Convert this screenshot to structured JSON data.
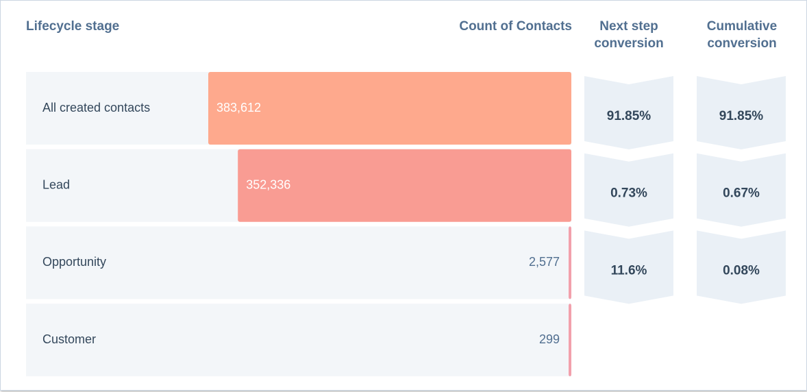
{
  "chart_data": {
    "type": "funnel",
    "headers": {
      "stage": "Lifecycle stage",
      "count": "Count of Contacts",
      "next_step": "Next step conversion",
      "cumulative": "Cumulative conversion"
    },
    "categories": [
      "All created contacts",
      "Lead",
      "Opportunity",
      "Customer"
    ],
    "values": [
      383612,
      352336,
      2577,
      299
    ],
    "value_labels": [
      "383,612",
      "352,336",
      "2,577",
      "299"
    ],
    "colors": [
      "#fea98d",
      "#f99c93",
      "#f2a0ac",
      "#f2a0ac"
    ],
    "next_step_conversion": {
      "values": [
        91.85,
        0.73,
        11.6
      ],
      "value_labels": [
        "91.85%",
        "0.73%",
        "11.6%"
      ]
    },
    "cumulative_conversion": {
      "values": [
        91.85,
        0.67,
        0.08
      ],
      "value_labels": [
        "91.85%",
        "0.67%",
        "0.08%"
      ]
    }
  }
}
